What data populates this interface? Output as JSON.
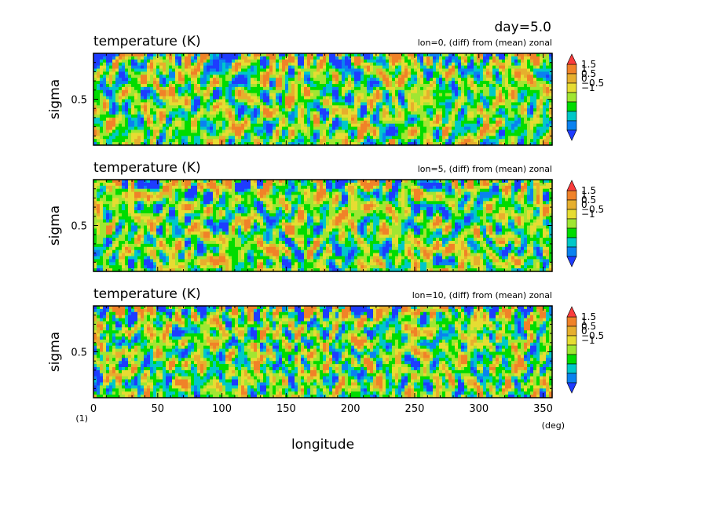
{
  "header": {
    "day_label": "day=5.0"
  },
  "chart_data": {
    "type": "heatmap",
    "variable": "temperature",
    "units": "K",
    "xlabel": "longitude",
    "ylabel": "sigma",
    "x_unit_label": "(deg)",
    "y_unit_label": "(1)",
    "xlim": [
      0,
      357
    ],
    "ylim": [
      0.0,
      1.0
    ],
    "x_ticks": [
      0,
      50,
      100,
      150,
      200,
      250,
      300,
      350
    ],
    "y_ticks": [
      0.5
    ],
    "colorbar": {
      "levels": [
        -1.5,
        -1,
        -0.5,
        0,
        0.5,
        1,
        1.5
      ],
      "tick_labels": [
        "1.5",
        "1",
        "0.5",
        "0",
        "−0.5",
        "−1"
      ],
      "tick_values": [
        1.5,
        1,
        0.5,
        0,
        -0.5,
        -1
      ],
      "colors": [
        "#1e3cff",
        "#0a82f0",
        "#00c8c8",
        "#00dc00",
        "#a0e632",
        "#e6dc32",
        "#e6af2d",
        "#f08228",
        "#fa3c3c"
      ]
    },
    "panels": [
      {
        "title": "temperature (K)",
        "subtitle": "lon=0, (diff) from (mean) zonal",
        "seed": 11
      },
      {
        "title": "temperature (K)",
        "subtitle": "lon=5, (diff) from (mean) zonal",
        "seed": 27
      },
      {
        "title": "temperature (K)",
        "subtitle": "lon=10, (diff) from (mean) zonal",
        "seed": 43
      }
    ]
  }
}
